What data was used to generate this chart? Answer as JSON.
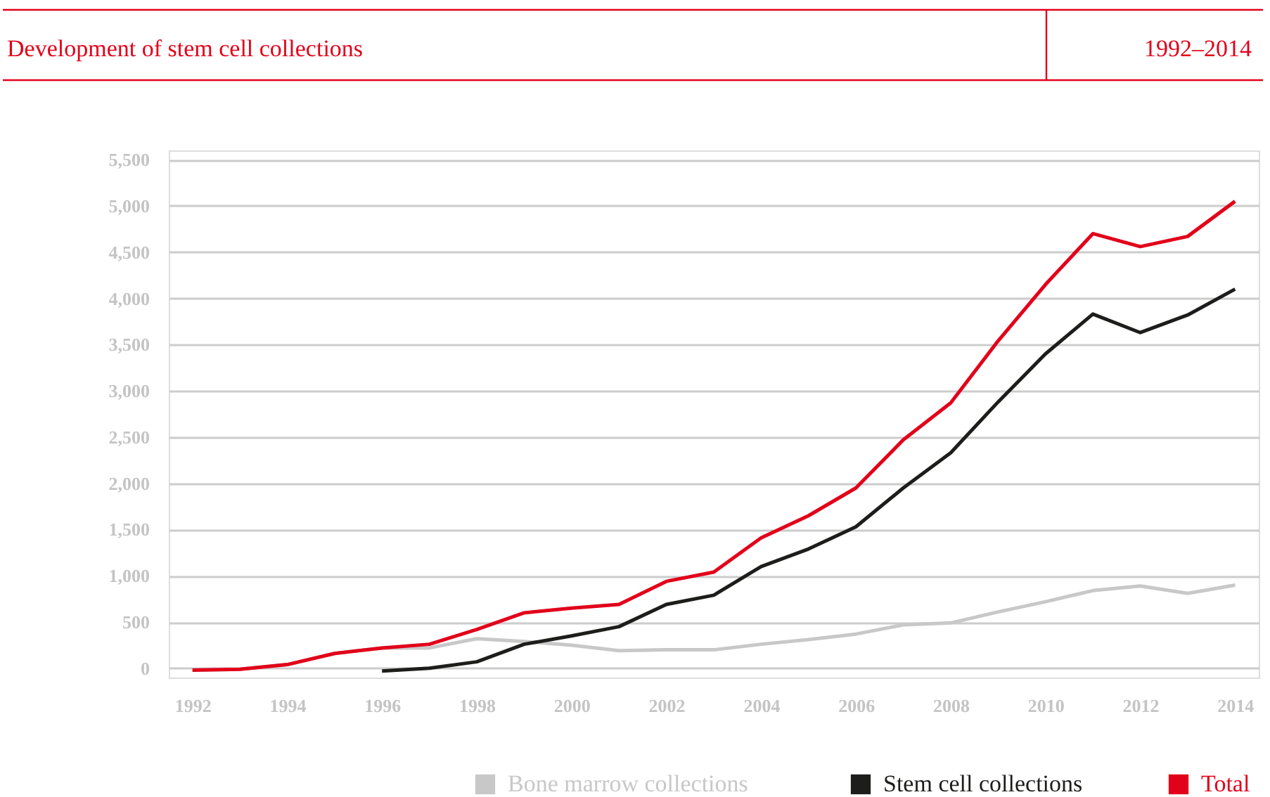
{
  "chart_data": {
    "type": "line",
    "title": "Development of stem cell collections",
    "subtitle": "1992–2014",
    "x": [
      1992,
      1993,
      1994,
      1995,
      1996,
      1997,
      1998,
      1999,
      2000,
      2001,
      2002,
      2003,
      2004,
      2005,
      2006,
      2007,
      2008,
      2009,
      2010,
      2011,
      2012,
      2013,
      2014
    ],
    "series": [
      {
        "name": "Bone marrow collections",
        "color": "#c8c8c8",
        "values": [
          -20,
          -10,
          40,
          160,
          220,
          220,
          320,
          290,
          250,
          190,
          200,
          200,
          260,
          310,
          370,
          470,
          490,
          610,
          720,
          840,
          890,
          810,
          900
        ]
      },
      {
        "name": "Stem cell collections",
        "color": "#1d1d1b",
        "values": [
          null,
          null,
          null,
          null,
          -30,
          0,
          70,
          260,
          350,
          450,
          690,
          790,
          1100,
          1290,
          1530,
          1950,
          2330,
          2880,
          3400,
          3830,
          3630,
          3820,
          4100
        ]
      },
      {
        "name": "Total",
        "color": "#e2001a",
        "values": [
          -20,
          -10,
          40,
          160,
          220,
          260,
          420,
          600,
          650,
          690,
          940,
          1040,
          1410,
          1650,
          1950,
          2470,
          2870,
          3540,
          4150,
          4700,
          4560,
          4670,
          5050
        ]
      }
    ],
    "xlim": [
      1991.5,
      2014.5
    ],
    "xticks": [
      1992,
      1994,
      1996,
      1998,
      2000,
      2002,
      2004,
      2006,
      2008,
      2010,
      2012,
      2014
    ],
    "ylim": [
      -100,
      5600
    ],
    "yticks": [
      0,
      500,
      {
        "value": 1000,
        "label": "1,000"
      },
      {
        "value": 1500,
        "label": "1,500"
      },
      {
        "value": 2000,
        "label": "2,000"
      },
      {
        "value": 2500,
        "label": "2,500"
      },
      {
        "value": 3000,
        "label": "3,000"
      },
      {
        "value": 3500,
        "label": "3,500"
      },
      {
        "value": 4000,
        "label": "4,000"
      },
      {
        "value": 4500,
        "label": "4,500"
      },
      {
        "value": 5000,
        "label": "5,000"
      },
      {
        "value": 5500,
        "label": "5,500"
      }
    ],
    "grid": "y",
    "legend": "bottom right",
    "marker": "none",
    "line_style": "solid"
  }
}
